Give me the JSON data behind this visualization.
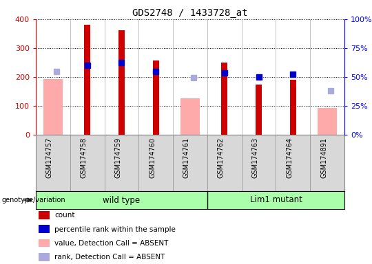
{
  "title": "GDS2748 / 1433728_at",
  "samples": [
    "GSM174757",
    "GSM174758",
    "GSM174759",
    "GSM174760",
    "GSM174761",
    "GSM174762",
    "GSM174763",
    "GSM174764",
    "GSM174891"
  ],
  "count_values": [
    null,
    380,
    363,
    257,
    null,
    249,
    174,
    191,
    null
  ],
  "count_color": "#cc0000",
  "rank_values": [
    null,
    240,
    250,
    218,
    null,
    214,
    201,
    210,
    null
  ],
  "rank_color": "#0000cc",
  "absent_value_values": [
    193,
    null,
    null,
    null,
    126,
    null,
    null,
    null,
    94
  ],
  "absent_value_color": "#ffaaaa",
  "absent_rank_values": [
    218,
    null,
    null,
    null,
    197,
    null,
    null,
    null,
    152
  ],
  "absent_rank_color": "#aaaadd",
  "ylim": [
    0,
    400
  ],
  "y2lim": [
    0,
    100
  ],
  "yticks": [
    0,
    100,
    200,
    300,
    400
  ],
  "y2ticks": [
    0,
    25,
    50,
    75,
    100
  ],
  "y2ticklabels": [
    "0%",
    "25%",
    "50%",
    "75%",
    "100%"
  ],
  "group_color": "#aaffaa",
  "label_bg": "#d8d8d8",
  "legend_items": [
    {
      "label": "count",
      "color": "#cc0000"
    },
    {
      "label": "percentile rank within the sample",
      "color": "#0000cc"
    },
    {
      "label": "value, Detection Call = ABSENT",
      "color": "#ffaaaa"
    },
    {
      "label": "rank, Detection Call = ABSENT",
      "color": "#aaaadd"
    }
  ]
}
